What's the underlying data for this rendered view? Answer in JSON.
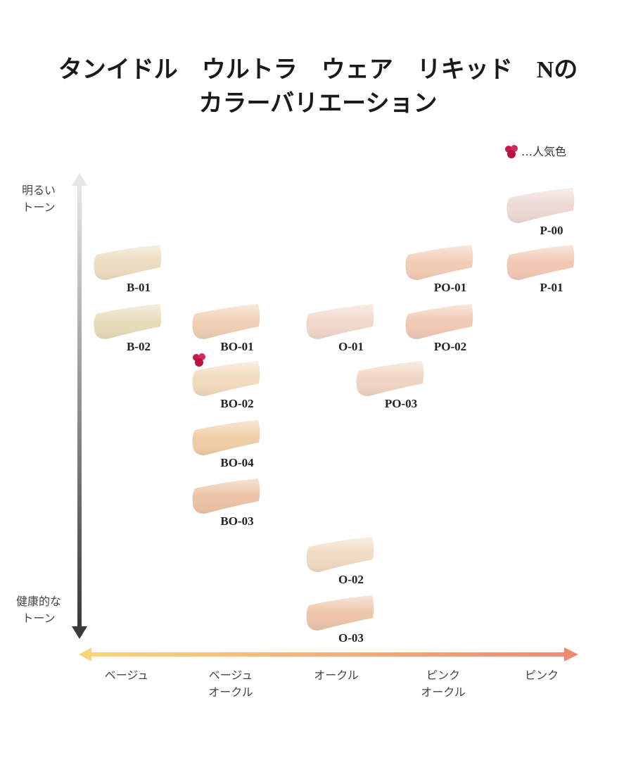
{
  "title": [
    "タンイドル　ウルトラ　ウェア　リキッド　Nの",
    "カラーバリエーション"
  ],
  "legend": "…人気色",
  "vertical_axis": {
    "top": [
      "明るい",
      "トーン"
    ],
    "bottom": [
      "健康的な",
      "トーン"
    ]
  },
  "horizontal_axis": {
    "categories": [
      [
        "ベージュ"
      ],
      [
        "ベージュ",
        "オークル"
      ],
      [
        "オークル"
      ],
      [
        "ピンク",
        "オークル"
      ],
      [
        "ピンク"
      ]
    ]
  },
  "swatches": [
    {
      "label": "B-01",
      "color": "#ecdcbf",
      "popular": false
    },
    {
      "label": "B-02",
      "color": "#e7dbb9",
      "popular": false
    },
    {
      "label": "BO-01",
      "color": "#efcfb2",
      "popular": false
    },
    {
      "label": "BO-02",
      "color": "#f2dabd",
      "popular": true
    },
    {
      "label": "BO-04",
      "color": "#efcda6",
      "popular": false
    },
    {
      "label": "BO-03",
      "color": "#ebc4a5",
      "popular": false
    },
    {
      "label": "O-01",
      "color": "#f0d7ca",
      "popular": false
    },
    {
      "label": "O-02",
      "color": "#f0dbc2",
      "popular": false
    },
    {
      "label": "O-03",
      "color": "#edc5aa",
      "popular": false
    },
    {
      "label": "PO-01",
      "color": "#f3ccb4",
      "popular": false
    },
    {
      "label": "PO-02",
      "color": "#f1c9b4",
      "popular": false
    },
    {
      "label": "PO-03",
      "color": "#f0d5c2",
      "popular": false
    },
    {
      "label": "P-00",
      "color": "#eed8d4",
      "popular": false
    },
    {
      "label": "P-01",
      "color": "#f2c8b4",
      "popular": false
    }
  ]
}
